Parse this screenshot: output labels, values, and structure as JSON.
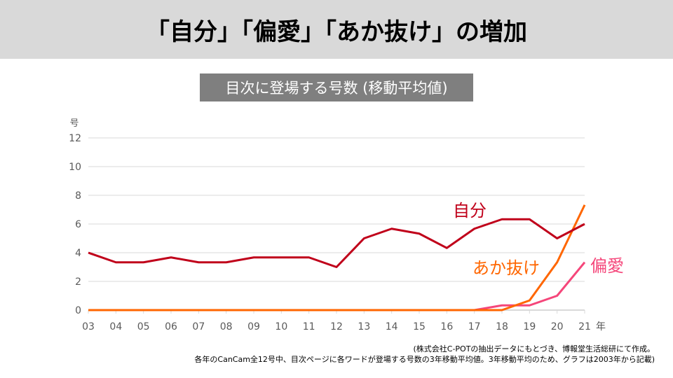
{
  "header": {
    "title": "「自分」「偏愛」「あか抜け」の増加"
  },
  "subtitle": "目次に登場する号数 (移動平均値)",
  "notes": [
    "(株式会社C-POTの抽出データにもとづき、博報堂生活総研にて作成。",
    "各年のCanCam全12号中、目次ページに各ワードが登場する号数の3年移動平均値。3年移動平均のため、グラフは2003年から記載)"
  ],
  "chart_data": {
    "type": "line",
    "title": "目次に登場する号数 (移動平均値)",
    "ylabel": "号",
    "xlabel": "年",
    "categories": [
      "03",
      "04",
      "05",
      "06",
      "07",
      "08",
      "09",
      "10",
      "11",
      "12",
      "13",
      "14",
      "15",
      "16",
      "17",
      "18",
      "19",
      "20",
      "21"
    ],
    "yticks": [
      "0",
      "2",
      "4",
      "6",
      "8",
      "10",
      "12"
    ],
    "ylim": [
      0,
      12
    ],
    "grid": true,
    "series": [
      {
        "name": "自分",
        "color": "#c0001a",
        "values": [
          4,
          3.33,
          3.33,
          3.67,
          3.33,
          3.33,
          3.67,
          3.67,
          3.67,
          3,
          5,
          5.67,
          5.33,
          4.33,
          5.67,
          6.33,
          6.33,
          5,
          6
        ]
      },
      {
        "name": "あか抜け",
        "color": "#ff6600",
        "values": [
          0,
          0,
          0,
          0,
          0,
          0,
          0,
          0,
          0,
          0,
          0,
          0,
          0,
          0,
          0,
          0,
          0.67,
          3.33,
          7.33
        ]
      },
      {
        "name": "偏愛",
        "color": "#f5467a",
        "values": [
          0,
          0,
          0,
          0,
          0,
          0,
          0,
          0,
          0,
          0,
          0,
          0,
          0,
          0,
          0,
          0.33,
          0.33,
          1,
          3.33
        ]
      }
    ]
  }
}
